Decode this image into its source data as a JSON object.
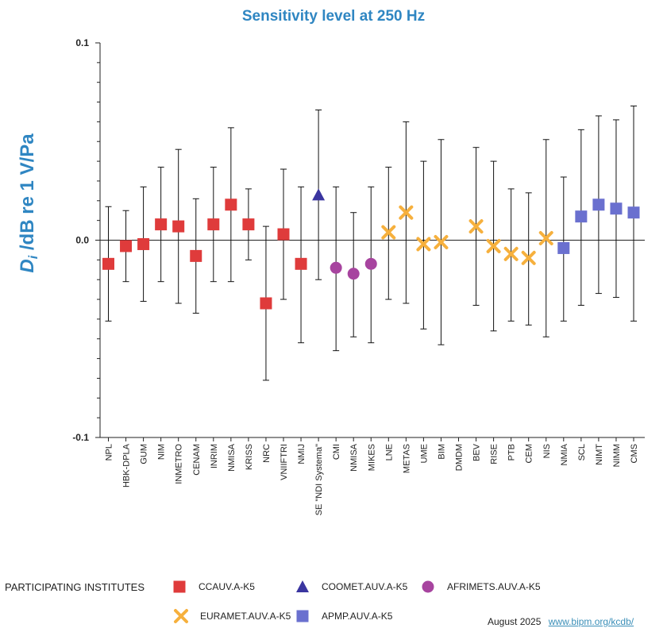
{
  "chart_data": {
    "type": "scatter",
    "title": "Sensitivity level at 250 Hz",
    "ylabel_sym": "D",
    "ylabel_sub": "i",
    "ylabel_rest": " /dB re 1 V/Pa",
    "ylim": [
      -0.1,
      0.1
    ],
    "yticks": [
      "0.1",
      "0.0",
      "-0.1"
    ],
    "ytick_values": [
      0.1,
      0.0,
      -0.1
    ],
    "categories": [
      "NPL",
      "HBK-DPLA",
      "GUM",
      "NIM",
      "INMETRO",
      "CENAM",
      "INRIM",
      "NMISA",
      "KRISS",
      "NRC",
      "VNIIFTRI",
      "NMIJ",
      "SE \"NDI Systema\"",
      "CMI",
      "NMISA",
      "MIKES",
      "LNE",
      "METAS",
      "UME",
      "BIM",
      "DMDM",
      "BEV",
      "RISE",
      "PTB",
      "CEM",
      "NIS",
      "NMIA",
      "SCL",
      "NIMT",
      "NIMM",
      "CMS"
    ],
    "points": [
      {
        "cat": 0,
        "value": -0.012,
        "low": -0.041,
        "high": 0.017,
        "group": "CCAUV.A-K5"
      },
      {
        "cat": 1,
        "value": -0.003,
        "low": -0.021,
        "high": 0.015,
        "group": "CCAUV.A-K5"
      },
      {
        "cat": 2,
        "value": -0.002,
        "low": -0.031,
        "high": 0.027,
        "group": "CCAUV.A-K5"
      },
      {
        "cat": 3,
        "value": 0.008,
        "low": -0.021,
        "high": 0.037,
        "group": "CCAUV.A-K5"
      },
      {
        "cat": 4,
        "value": 0.007,
        "low": -0.032,
        "high": 0.046,
        "group": "CCAUV.A-K5"
      },
      {
        "cat": 5,
        "value": -0.008,
        "low": -0.037,
        "high": 0.021,
        "group": "CCAUV.A-K5"
      },
      {
        "cat": 6,
        "value": 0.008,
        "low": -0.021,
        "high": 0.037,
        "group": "CCAUV.A-K5"
      },
      {
        "cat": 7,
        "value": 0.018,
        "low": -0.021,
        "high": 0.057,
        "group": "CCAUV.A-K5"
      },
      {
        "cat": 8,
        "value": 0.008,
        "low": -0.01,
        "high": 0.026,
        "group": "CCAUV.A-K5"
      },
      {
        "cat": 9,
        "value": -0.032,
        "low": -0.071,
        "high": 0.007,
        "group": "CCAUV.A-K5"
      },
      {
        "cat": 10,
        "value": 0.003,
        "low": -0.03,
        "high": 0.036,
        "group": "CCAUV.A-K5"
      },
      {
        "cat": 11,
        "value": -0.012,
        "low": -0.052,
        "high": 0.027,
        "group": "CCAUV.A-K5"
      },
      {
        "cat": 12,
        "value": 0.023,
        "low": -0.02,
        "high": 0.066,
        "group": "COOMET.AUV.A-K5"
      },
      {
        "cat": 13,
        "value": -0.014,
        "low": -0.056,
        "high": 0.027,
        "group": "AFRIMETS.AUV.A-K5"
      },
      {
        "cat": 14,
        "value": -0.017,
        "low": -0.049,
        "high": 0.014,
        "group": "AFRIMETS.AUV.A-K5"
      },
      {
        "cat": 15,
        "value": -0.012,
        "low": -0.052,
        "high": 0.027,
        "group": "AFRIMETS.AUV.A-K5"
      },
      {
        "cat": 16,
        "value": 0.004,
        "low": -0.03,
        "high": 0.037,
        "group": "EURAMET.AUV.A-K5"
      },
      {
        "cat": 17,
        "value": 0.014,
        "low": -0.032,
        "high": 0.06,
        "group": "EURAMET.AUV.A-K5"
      },
      {
        "cat": 18,
        "value": -0.002,
        "low": -0.045,
        "high": 0.04,
        "group": "EURAMET.AUV.A-K5"
      },
      {
        "cat": 19,
        "value": -0.001,
        "low": -0.053,
        "high": 0.051,
        "group": "EURAMET.AUV.A-K5"
      },
      {
        "cat": 21,
        "value": 0.007,
        "low": -0.033,
        "high": 0.047,
        "group": "EURAMET.AUV.A-K5"
      },
      {
        "cat": 22,
        "value": -0.003,
        "low": -0.046,
        "high": 0.04,
        "group": "EURAMET.AUV.A-K5"
      },
      {
        "cat": 23,
        "value": -0.007,
        "low": -0.041,
        "high": 0.026,
        "group": "EURAMET.AUV.A-K5"
      },
      {
        "cat": 24,
        "value": -0.009,
        "low": -0.043,
        "high": 0.024,
        "group": "EURAMET.AUV.A-K5"
      },
      {
        "cat": 25,
        "value": 0.001,
        "low": -0.049,
        "high": 0.051,
        "group": "EURAMET.AUV.A-K5"
      },
      {
        "cat": 26,
        "value": -0.004,
        "low": -0.041,
        "high": 0.032,
        "group": "APMP.AUV.A-K5"
      },
      {
        "cat": 27,
        "value": 0.012,
        "low": -0.033,
        "high": 0.056,
        "group": "APMP.AUV.A-K5"
      },
      {
        "cat": 28,
        "value": 0.018,
        "low": -0.027,
        "high": 0.063,
        "group": "APMP.AUV.A-K5"
      },
      {
        "cat": 29,
        "value": 0.016,
        "low": -0.029,
        "high": 0.061,
        "group": "APMP.AUV.A-K5"
      },
      {
        "cat": 30,
        "value": 0.014,
        "low": -0.041,
        "high": 0.068,
        "group": "APMP.AUV.A-K5"
      }
    ],
    "legend_title": "PARTICIPATING INSTITUTES",
    "legend": [
      {
        "name": "CCAUV.A-K5",
        "marker": "square",
        "color": "#df3b3b"
      },
      {
        "name": "COOMET.AUV.A-K5",
        "marker": "triangle",
        "color": "#3a35a0"
      },
      {
        "name": "AFRIMETS.AUV.A-K5",
        "marker": "circle",
        "color": "#a7449f"
      },
      {
        "name": "EURAMET.AUV.A-K5",
        "marker": "cross",
        "color": "#f6b03d"
      },
      {
        "name": "APMP.AUV.A-K5",
        "marker": "square",
        "color": "#6a70cf"
      }
    ]
  },
  "footer": {
    "date": "August 2025",
    "link": "www.bipm.org/kcdb/"
  }
}
